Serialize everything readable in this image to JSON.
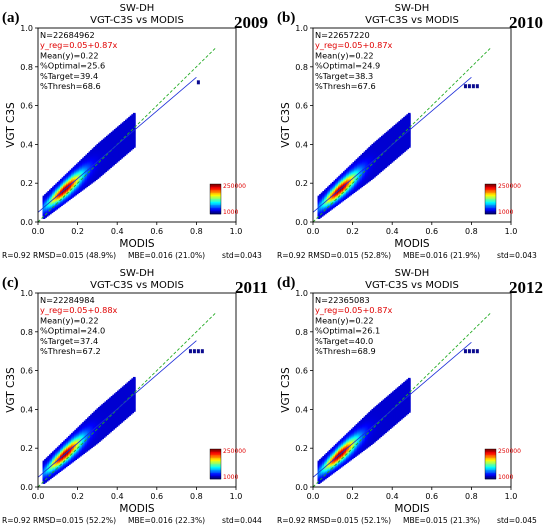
{
  "chart_data": [
    {
      "type": "heatmap",
      "panel_label": "(a)",
      "year": "2009",
      "title_line1": "SW-DH",
      "title_line2": "VGT-C3S vs MODIS",
      "xlabel": "MODIS",
      "ylabel": "VGT C3S",
      "xlim": [
        0.0,
        1.0
      ],
      "ylim": [
        0.0,
        1.0
      ],
      "x_ticks": [
        "0.0",
        "0.2",
        "0.4",
        "0.6",
        "0.8",
        "1.0"
      ],
      "y_ticks": [
        "0.0",
        "0.2",
        "0.4",
        "0.6",
        "0.8",
        "1.0"
      ],
      "annotations": [
        "N=22684962",
        "y_reg=0.05+0.87x",
        "Mean(y)=0.22",
        "%Optimal=25.6",
        "%Target=39.4",
        "%Thresh=68.6"
      ],
      "regression": {
        "intercept": 0.05,
        "slope": 0.87
      },
      "colorbar": {
        "max_label": "250000",
        "min_label": "1000"
      },
      "stats": [
        "R=0.92",
        "RMSD=0.015 (48.9%)",
        "MBE=0.016 (21.0%)",
        "std=0.043"
      ]
    },
    {
      "type": "heatmap",
      "panel_label": "(b)",
      "year": "2010",
      "title_line1": "SW-DH",
      "title_line2": "VGT-C3S vs MODIS",
      "xlabel": "MODIS",
      "ylabel": "VGT C3S",
      "xlim": [
        0.0,
        1.0
      ],
      "ylim": [
        0.0,
        1.0
      ],
      "x_ticks": [
        "0.0",
        "0.2",
        "0.4",
        "0.6",
        "0.8",
        "1.0"
      ],
      "y_ticks": [
        "0.0",
        "0.2",
        "0.4",
        "0.6",
        "0.8",
        "1.0"
      ],
      "annotations": [
        "N=22657220",
        "y_reg=0.05+0.87x",
        "Mean(y)=0.22",
        "%Optimal=24.9",
        "%Target=38.3",
        "%Thresh=67.6"
      ],
      "regression": {
        "intercept": 0.05,
        "slope": 0.87
      },
      "colorbar": {
        "max_label": "250000",
        "min_label": "1000"
      },
      "stats": [
        "R=0.92",
        "RMSD=0.015 (52.8%)",
        "MBE=0.016 (21.9%)",
        "std=0.043"
      ]
    },
    {
      "type": "heatmap",
      "panel_label": "(c)",
      "year": "2011",
      "title_line1": "SW-DH",
      "title_line2": "VGT-C3S vs MODIS",
      "xlabel": "MODIS",
      "ylabel": "VGT C3S",
      "xlim": [
        0.0,
        1.0
      ],
      "ylim": [
        0.0,
        1.0
      ],
      "x_ticks": [
        "0.0",
        "0.2",
        "0.4",
        "0.6",
        "0.8",
        "1.0"
      ],
      "y_ticks": [
        "0.0",
        "0.2",
        "0.4",
        "0.6",
        "0.8",
        "1.0"
      ],
      "annotations": [
        "N=22284984",
        "y_reg=0.05+0.88x",
        "Mean(y)=0.22",
        "%Optimal=24.0",
        "%Target=37.4",
        "%Thresh=67.2"
      ],
      "regression": {
        "intercept": 0.05,
        "slope": 0.88
      },
      "colorbar": {
        "max_label": "250000",
        "min_label": "1000"
      },
      "stats": [
        "R=0.92",
        "RMSD=0.015 (52.2%)",
        "MBE=0.016 (22.3%)",
        "std=0.044"
      ]
    },
    {
      "type": "heatmap",
      "panel_label": "(d)",
      "year": "2012",
      "title_line1": "SW-DH",
      "title_line2": "VGT-C3S vs MODIS",
      "xlabel": "MODIS",
      "ylabel": "VGT C3S",
      "xlim": [
        0.0,
        1.0
      ],
      "ylim": [
        0.0,
        1.0
      ],
      "x_ticks": [
        "0.0",
        "0.2",
        "0.4",
        "0.6",
        "0.8",
        "1.0"
      ],
      "y_ticks": [
        "0.0",
        "0.2",
        "0.4",
        "0.6",
        "0.8",
        "1.0"
      ],
      "annotations": [
        "N=22365083",
        "y_reg=0.05+0.87x",
        "Mean(y)=0.22",
        "%Optimal=26.1",
        "%Target=40.0",
        "%Thresh=68.9"
      ],
      "regression": {
        "intercept": 0.05,
        "slope": 0.87
      },
      "colorbar": {
        "max_label": "250000",
        "min_label": "1000"
      },
      "stats": [
        "R=0.92",
        "RMSD=0.015 (52.1%)",
        "MBE=0.015 (21.3%)",
        "std=0.045"
      ]
    }
  ],
  "colors": {
    "one_to_one_line": "#22aa22",
    "regression_line": "#1a2bd8",
    "annotation_highlight": "#e00000"
  }
}
